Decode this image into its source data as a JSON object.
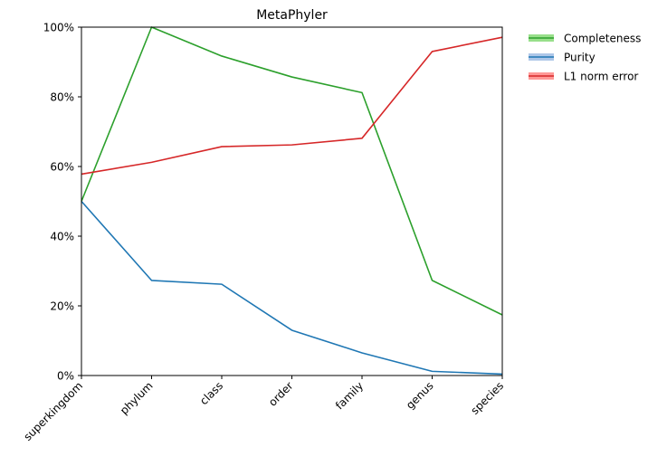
{
  "chart_data": {
    "type": "line",
    "title": "MetaPhyler",
    "xlabel": "",
    "ylabel": "",
    "categories": [
      "superkingdom",
      "phylum",
      "class",
      "order",
      "family",
      "genus",
      "species"
    ],
    "ylim": [
      0,
      100
    ],
    "yticks": [
      0,
      20,
      40,
      60,
      80,
      100
    ],
    "ytick_labels": [
      "0%",
      "20%",
      "40%",
      "60%",
      "80%",
      "100%"
    ],
    "grid": false,
    "legend_position": "outside-top-right",
    "series": [
      {
        "name": "Completeness",
        "color": "#2ca02c",
        "band_color": "#98df8a",
        "values": [
          50.0,
          100.0,
          91.7,
          85.7,
          81.2,
          27.3,
          17.4
        ]
      },
      {
        "name": "Purity",
        "color": "#1f77b4",
        "band_color": "#aec7e8",
        "values": [
          50.0,
          27.3,
          26.2,
          13.0,
          6.5,
          1.2,
          0.4
        ]
      },
      {
        "name": "L1 norm error",
        "color": "#d62728",
        "band_color": "#ff9896",
        "values": [
          57.8,
          61.2,
          65.7,
          66.2,
          68.1,
          93.0,
          97.1
        ]
      }
    ]
  }
}
